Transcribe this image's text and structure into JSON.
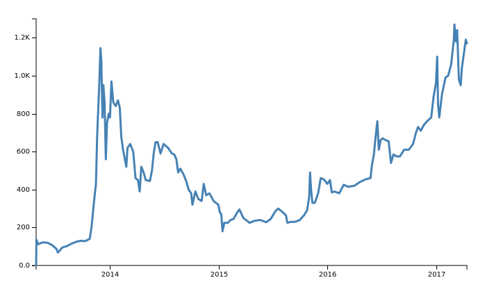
{
  "chart_data": {
    "type": "line",
    "title": "",
    "xlabel": "",
    "ylabel": "",
    "grid": false,
    "x_axis": {
      "type": "time",
      "range": [
        "2013-04-28",
        "2017-04-14"
      ],
      "ticks": [
        {
          "date": "2014-01-01",
          "label": "2014"
        },
        {
          "date": "2015-01-01",
          "label": "2015"
        },
        {
          "date": "2016-01-01",
          "label": "2016"
        },
        {
          "date": "2017-01-01",
          "label": "2017"
        }
      ]
    },
    "y_axis": {
      "range": [
        0,
        1300
      ],
      "ticks": [
        {
          "value": 0,
          "label": "0.0"
        },
        {
          "value": 200,
          "label": "200"
        },
        {
          "value": 400,
          "label": "400"
        },
        {
          "value": 600,
          "label": "600"
        },
        {
          "value": 800,
          "label": "800"
        },
        {
          "value": 1000,
          "label": "1.0K"
        },
        {
          "value": 1200,
          "label": "1.2K"
        }
      ]
    },
    "series": [
      {
        "color": "#4682b4",
        "points": [
          [
            "2013-04-28",
            0
          ],
          [
            "2013-04-29",
            135
          ],
          [
            "2013-05-05",
            112
          ],
          [
            "2013-05-20",
            122
          ],
          [
            "2013-06-05",
            120
          ],
          [
            "2013-06-20",
            108
          ],
          [
            "2013-07-05",
            88
          ],
          [
            "2013-07-10",
            68
          ],
          [
            "2013-07-25",
            95
          ],
          [
            "2013-08-10",
            102
          ],
          [
            "2013-08-25",
            115
          ],
          [
            "2013-09-10",
            125
          ],
          [
            "2013-09-25",
            130
          ],
          [
            "2013-10-10",
            128
          ],
          [
            "2013-10-25",
            140
          ],
          [
            "2013-10-31",
            200
          ],
          [
            "2013-11-08",
            330
          ],
          [
            "2013-11-15",
            430
          ],
          [
            "2013-11-19",
            680
          ],
          [
            "2013-11-22",
            800
          ],
          [
            "2013-11-26",
            950
          ],
          [
            "2013-11-30",
            1145
          ],
          [
            "2013-12-03",
            1080
          ],
          [
            "2013-12-07",
            780
          ],
          [
            "2013-12-10",
            950
          ],
          [
            "2013-12-14",
            860
          ],
          [
            "2013-12-18",
            560
          ],
          [
            "2013-12-22",
            750
          ],
          [
            "2013-12-28",
            800
          ],
          [
            "2014-01-01",
            780
          ],
          [
            "2014-01-06",
            970
          ],
          [
            "2014-01-12",
            860
          ],
          [
            "2014-01-20",
            840
          ],
          [
            "2014-01-28",
            870
          ],
          [
            "2014-02-03",
            830
          ],
          [
            "2014-02-08",
            680
          ],
          [
            "2014-02-14",
            610
          ],
          [
            "2014-02-20",
            560
          ],
          [
            "2014-02-25",
            520
          ],
          [
            "2014-03-01",
            620
          ],
          [
            "2014-03-10",
            640
          ],
          [
            "2014-03-20",
            600
          ],
          [
            "2014-03-28",
            460
          ],
          [
            "2014-04-05",
            450
          ],
          [
            "2014-04-11",
            390
          ],
          [
            "2014-04-16",
            520
          ],
          [
            "2014-04-24",
            490
          ],
          [
            "2014-05-01",
            450
          ],
          [
            "2014-05-15",
            445
          ],
          [
            "2014-05-22",
            500
          ],
          [
            "2014-05-28",
            590
          ],
          [
            "2014-06-03",
            650
          ],
          [
            "2014-06-10",
            650
          ],
          [
            "2014-06-20",
            590
          ],
          [
            "2014-06-30",
            640
          ],
          [
            "2014-07-15",
            620
          ],
          [
            "2014-07-28",
            590
          ],
          [
            "2014-08-05",
            585
          ],
          [
            "2014-08-12",
            560
          ],
          [
            "2014-08-18",
            490
          ],
          [
            "2014-08-25",
            510
          ],
          [
            "2014-09-05",
            480
          ],
          [
            "2014-09-15",
            440
          ],
          [
            "2014-09-22",
            400
          ],
          [
            "2014-10-01",
            380
          ],
          [
            "2014-10-05",
            320
          ],
          [
            "2014-10-15",
            390
          ],
          [
            "2014-10-25",
            350
          ],
          [
            "2014-11-05",
            340
          ],
          [
            "2014-11-12",
            430
          ],
          [
            "2014-11-20",
            370
          ],
          [
            "2014-12-01",
            380
          ],
          [
            "2014-12-15",
            340
          ],
          [
            "2014-12-31",
            320
          ],
          [
            "2015-01-05",
            280
          ],
          [
            "2015-01-10",
            270
          ],
          [
            "2015-01-14",
            180
          ],
          [
            "2015-01-20",
            225
          ],
          [
            "2015-02-01",
            225
          ],
          [
            "2015-02-10",
            240
          ],
          [
            "2015-02-20",
            245
          ],
          [
            "2015-03-05",
            280
          ],
          [
            "2015-03-12",
            295
          ],
          [
            "2015-03-25",
            250
          ],
          [
            "2015-04-15",
            225
          ],
          [
            "2015-05-01",
            235
          ],
          [
            "2015-05-20",
            240
          ],
          [
            "2015-06-10",
            228
          ],
          [
            "2015-06-25",
            245
          ],
          [
            "2015-07-10",
            285
          ],
          [
            "2015-07-20",
            300
          ],
          [
            "2015-08-01",
            285
          ],
          [
            "2015-08-15",
            265
          ],
          [
            "2015-08-20",
            225
          ],
          [
            "2015-09-01",
            230
          ],
          [
            "2015-09-15",
            230
          ],
          [
            "2015-10-01",
            240
          ],
          [
            "2015-10-15",
            265
          ],
          [
            "2015-10-25",
            290
          ],
          [
            "2015-11-01",
            360
          ],
          [
            "2015-11-04",
            490
          ],
          [
            "2015-11-08",
            390
          ],
          [
            "2015-11-12",
            330
          ],
          [
            "2015-11-20",
            330
          ],
          [
            "2015-12-01",
            380
          ],
          [
            "2015-12-10",
            460
          ],
          [
            "2015-12-20",
            455
          ],
          [
            "2016-01-01",
            430
          ],
          [
            "2016-01-10",
            450
          ],
          [
            "2016-01-16",
            385
          ],
          [
            "2016-01-25",
            390
          ],
          [
            "2016-02-10",
            380
          ],
          [
            "2016-02-25",
            425
          ],
          [
            "2016-03-10",
            415
          ],
          [
            "2016-04-01",
            420
          ],
          [
            "2016-04-20",
            440
          ],
          [
            "2016-05-10",
            455
          ],
          [
            "2016-05-25",
            460
          ],
          [
            "2016-05-30",
            530
          ],
          [
            "2016-06-05",
            580
          ],
          [
            "2016-06-12",
            690
          ],
          [
            "2016-06-17",
            760
          ],
          [
            "2016-06-22",
            610
          ],
          [
            "2016-06-28",
            660
          ],
          [
            "2016-07-05",
            670
          ],
          [
            "2016-07-15",
            660
          ],
          [
            "2016-07-25",
            655
          ],
          [
            "2016-08-02",
            540
          ],
          [
            "2016-08-10",
            585
          ],
          [
            "2016-08-20",
            575
          ],
          [
            "2016-09-01",
            575
          ],
          [
            "2016-09-15",
            610
          ],
          [
            "2016-10-01",
            610
          ],
          [
            "2016-10-15",
            640
          ],
          [
            "2016-10-25",
            700
          ],
          [
            "2016-11-01",
            730
          ],
          [
            "2016-11-10",
            710
          ],
          [
            "2016-11-20",
            740
          ],
          [
            "2016-12-01",
            760
          ],
          [
            "2016-12-15",
            780
          ],
          [
            "2016-12-23",
            890
          ],
          [
            "2016-12-31",
            960
          ],
          [
            "2017-01-04",
            1100
          ],
          [
            "2017-01-07",
            850
          ],
          [
            "2017-01-11",
            780
          ],
          [
            "2017-01-20",
            900
          ],
          [
            "2017-02-01",
            990
          ],
          [
            "2017-02-10",
            1000
          ],
          [
            "2017-02-20",
            1060
          ],
          [
            "2017-03-01",
            1190
          ],
          [
            "2017-03-03",
            1270
          ],
          [
            "2017-03-08",
            1180
          ],
          [
            "2017-03-12",
            1240
          ],
          [
            "2017-03-18",
            980
          ],
          [
            "2017-03-24",
            950
          ],
          [
            "2017-03-28",
            1040
          ],
          [
            "2017-04-04",
            1120
          ],
          [
            "2017-04-10",
            1190
          ],
          [
            "2017-04-14",
            1170
          ]
        ]
      }
    ]
  }
}
